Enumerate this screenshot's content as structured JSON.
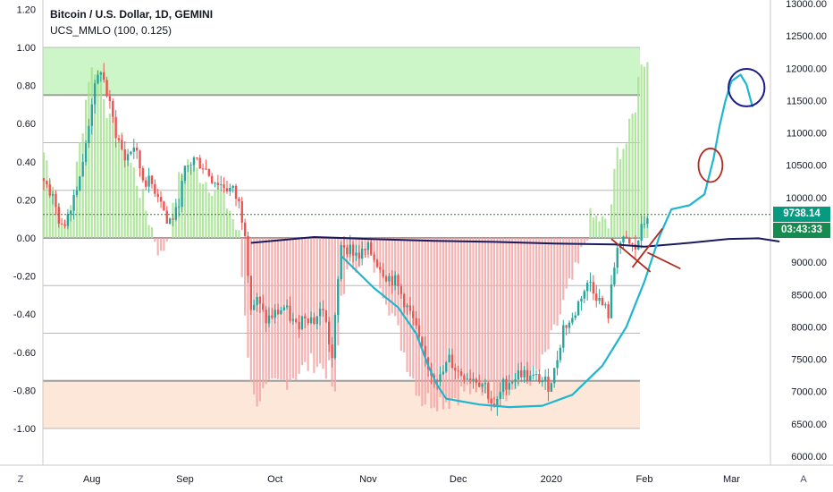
{
  "title": "Bitcoin / U.S. Dollar, 1D, GEMINI",
  "indicator": "UCS_MMLO (100, 0.125)",
  "price_tag": "9738.14",
  "time_tag": "03:43:33",
  "buttons": {
    "left": "Z",
    "right": "A"
  },
  "colors": {
    "up": "#26a69a",
    "down": "#ef5350",
    "green_zone": "#ccf5c8",
    "red_zone": "#fde7d9",
    "histo_green": "#a5e28f",
    "histo_red": "#f2a6a6",
    "dark_line": "#1a1a5e",
    "cyan_line": "#1fb5d0",
    "drawn_red": "#b02a20",
    "drawn_blue": "#1a1a8a"
  },
  "chart_data": {
    "type": "candlestick+histogram",
    "left_axis": {
      "ticks": [
        "1.20",
        "1.00",
        "0.80",
        "0.60",
        "0.40",
        "0.20",
        "0.00",
        "-0.20",
        "-0.40",
        "-0.60",
        "-0.80",
        "-1.00"
      ],
      "range": [
        -1.2,
        1.2
      ]
    },
    "right_axis": {
      "ticks": [
        "13000.00",
        "12500.00",
        "12000.00",
        "11500.00",
        "11000.00",
        "10500.00",
        "10000.00",
        "9500.00",
        "9000.00",
        "8500.00",
        "8000.00",
        "7500.00",
        "7000.00",
        "6500.00",
        "6000.00"
      ],
      "range": [
        5900,
        13000
      ]
    },
    "x_ticks": [
      "Aug",
      "Sep",
      "Oct",
      "Nov",
      "Dec",
      "2020",
      "Feb",
      "Mar"
    ],
    "x_tick_days": [
      16,
      47,
      77,
      108,
      138,
      169,
      200,
      229
    ],
    "horizontal_levels": [
      1.0,
      0.75,
      0.5,
      0.25,
      0.0,
      -0.25,
      -0.5,
      -0.75,
      -1.0
    ],
    "current_price": 9738.14,
    "price_path": [
      [
        0,
        10300
      ],
      [
        3,
        10000
      ],
      [
        6,
        9500
      ],
      [
        9,
        9900
      ],
      [
        13,
        10500
      ],
      [
        16,
        11500
      ],
      [
        19,
        12000
      ],
      [
        21,
        11600
      ],
      [
        24,
        11000
      ],
      [
        27,
        10600
      ],
      [
        30,
        10800
      ],
      [
        33,
        10300
      ],
      [
        36,
        10200
      ],
      [
        39,
        10000
      ],
      [
        41,
        9600
      ],
      [
        44,
        9750
      ],
      [
        47,
        10400
      ],
      [
        50,
        10600
      ],
      [
        53,
        10500
      ],
      [
        56,
        10300
      ],
      [
        59,
        10200
      ],
      [
        63,
        10100
      ],
      [
        65,
        9900
      ],
      [
        67,
        9500
      ],
      [
        69,
        8300
      ],
      [
        71,
        8400
      ],
      [
        74,
        8100
      ],
      [
        77,
        8200
      ],
      [
        80,
        8300
      ],
      [
        84,
        8000
      ],
      [
        87,
        8200
      ],
      [
        90,
        8100
      ],
      [
        93,
        8300
      ],
      [
        96,
        7500
      ],
      [
        98,
        8700
      ],
      [
        99,
        9300
      ],
      [
        102,
        9200
      ],
      [
        105,
        9100
      ],
      [
        108,
        9200
      ],
      [
        111,
        9000
      ],
      [
        114,
        8800
      ],
      [
        117,
        8700
      ],
      [
        120,
        8400
      ],
      [
        123,
        8100
      ],
      [
        126,
        7600
      ],
      [
        129,
        7300
      ],
      [
        132,
        7200
      ],
      [
        135,
        7500
      ],
      [
        138,
        7300
      ],
      [
        141,
        7250
      ],
      [
        144,
        7200
      ],
      [
        147,
        7100
      ],
      [
        150,
        6700
      ],
      [
        153,
        7100
      ],
      [
        156,
        7200
      ],
      [
        159,
        7300
      ],
      [
        162,
        7200
      ],
      [
        165,
        7200
      ],
      [
        168,
        7100
      ],
      [
        170,
        7300
      ],
      [
        173,
        8000
      ],
      [
        176,
        8100
      ],
      [
        179,
        8500
      ],
      [
        182,
        8700
      ],
      [
        185,
        8400
      ],
      [
        188,
        8200
      ],
      [
        191,
        9300
      ],
      [
        194,
        9300
      ],
      [
        197,
        9200
      ],
      [
        199,
        9500
      ],
      [
        201,
        9740
      ]
    ],
    "mmlo_path": [
      [
        0,
        0.45
      ],
      [
        4,
        0.25
      ],
      [
        7,
        0.05
      ],
      [
        10,
        0.25
      ],
      [
        13,
        0.6
      ],
      [
        15,
        0.85
      ],
      [
        17,
        0.9
      ],
      [
        19,
        0.85
      ],
      [
        22,
        0.6
      ],
      [
        26,
        0.5
      ],
      [
        30,
        0.35
      ],
      [
        33,
        0.2
      ],
      [
        36,
        0.05
      ],
      [
        39,
        -0.1
      ],
      [
        42,
        0.05
      ],
      [
        45,
        0.3
      ],
      [
        48,
        0.4
      ],
      [
        51,
        0.35
      ],
      [
        54,
        0.3
      ],
      [
        58,
        0.25
      ],
      [
        62,
        0.15
      ],
      [
        65,
        0.0
      ],
      [
        68,
        -0.6
      ],
      [
        70,
        -0.85
      ],
      [
        75,
        -0.8
      ],
      [
        80,
        -0.75
      ],
      [
        85,
        -0.7
      ],
      [
        90,
        -0.65
      ],
      [
        95,
        -0.7
      ],
      [
        97,
        -0.85
      ],
      [
        99,
        -0.3
      ],
      [
        102,
        -0.15
      ],
      [
        106,
        -0.1
      ],
      [
        110,
        -0.15
      ],
      [
        114,
        -0.3
      ],
      [
        118,
        -0.5
      ],
      [
        122,
        -0.7
      ],
      [
        126,
        -0.85
      ],
      [
        130,
        -0.85
      ],
      [
        135,
        -0.85
      ],
      [
        140,
        -0.8
      ],
      [
        145,
        -0.8
      ],
      [
        150,
        -0.8
      ],
      [
        155,
        -0.8
      ],
      [
        160,
        -0.75
      ],
      [
        165,
        -0.7
      ],
      [
        170,
        -0.5
      ],
      [
        174,
        -0.3
      ],
      [
        178,
        -0.15
      ],
      [
        182,
        0.1
      ],
      [
        185,
        0.1
      ],
      [
        188,
        0.05
      ],
      [
        191,
        0.45
      ],
      [
        194,
        0.5
      ],
      [
        197,
        0.7
      ],
      [
        199,
        0.95
      ],
      [
        201,
        0.92
      ]
    ],
    "dark_line_path": [
      [
        69,
        9300
      ],
      [
        90,
        9390
      ],
      [
        108,
        9360
      ],
      [
        130,
        9330
      ],
      [
        150,
        9315
      ],
      [
        170,
        9290
      ],
      [
        190,
        9275
      ],
      [
        200,
        9240
      ],
      [
        215,
        9300
      ],
      [
        228,
        9360
      ],
      [
        238,
        9370
      ],
      [
        245,
        9320
      ]
    ],
    "cyan_curve_path": [
      [
        99,
        9100
      ],
      [
        110,
        8600
      ],
      [
        118,
        8300
      ],
      [
        124,
        7900
      ],
      [
        128,
        7400
      ],
      [
        131,
        7100
      ],
      [
        134,
        6890
      ],
      [
        145,
        6800
      ],
      [
        155,
        6760
      ],
      [
        166,
        6780
      ],
      [
        176,
        6950
      ],
      [
        186,
        7400
      ],
      [
        194,
        8000
      ],
      [
        200,
        8700
      ],
      [
        205,
        9400
      ],
      [
        209,
        9820
      ],
      [
        215,
        9880
      ],
      [
        220,
        10050
      ],
      [
        223,
        10600
      ],
      [
        225,
        11100
      ],
      [
        227,
        11500
      ],
      [
        229,
        11800
      ],
      [
        232,
        11900
      ],
      [
        234,
        11750
      ],
      [
        236,
        11400
      ]
    ],
    "drawn_red_marks": [
      [
        [
          189,
          9360
        ],
        [
          202,
          8850
        ]
      ],
      [
        [
          196,
          8920
        ],
        [
          206,
          9520
        ]
      ],
      [
        [
          201,
          9150
        ],
        [
          212,
          8900
        ]
      ]
    ],
    "drawn_red_circle": {
      "day": 222,
      "price": 10500,
      "rx_days": 4,
      "ry_price": 260
    },
    "drawn_blue_circle": {
      "day": 234,
      "price": 11700,
      "rx_days": 6,
      "ry_price": 290
    }
  }
}
